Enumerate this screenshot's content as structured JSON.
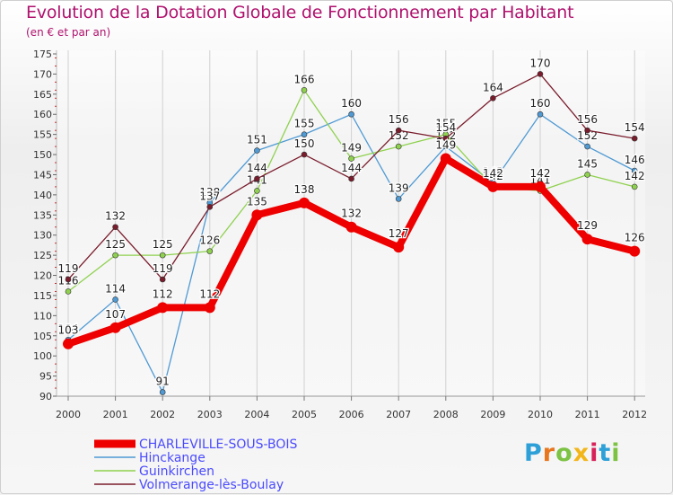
{
  "colors": {
    "title": "#b0126e",
    "legend_text": "#4a4aff",
    "axis_text": "#333333",
    "grid": "#d0d0d0"
  },
  "logo": {
    "text": "Proxiti",
    "colors": [
      "#2ea0d8",
      "#e8761e",
      "#7cc243",
      "#f3b61a",
      "#d8205a",
      "#2ea0d8",
      "#7cc243"
    ]
  },
  "chart_data": {
    "type": "line",
    "title": "Evolution de la Dotation Globale de Fonctionnement par Habitant",
    "subtitle": "(en € et par an)",
    "xlabel": "",
    "ylabel": "",
    "categories": [
      "2000",
      "2001",
      "2002",
      "2003",
      "2004",
      "2005",
      "2006",
      "2007",
      "2008",
      "2009",
      "2010",
      "2011",
      "2012"
    ],
    "ylim": [
      90,
      175
    ],
    "yticks": [
      90,
      95,
      100,
      105,
      110,
      115,
      120,
      125,
      130,
      135,
      140,
      145,
      150,
      155,
      160,
      165,
      170,
      175
    ],
    "grid": true,
    "legend_position": "bottom-left",
    "series": [
      {
        "name": "Hinckange",
        "color": "#4f9ad4",
        "thick": false,
        "values": [
          104,
          114,
          91,
          138,
          151,
          155,
          160,
          139,
          152,
          143,
          160,
          152,
          146
        ]
      },
      {
        "name": "Guinkirchen",
        "color": "#8fd14f",
        "thick": false,
        "values": [
          116,
          125,
          125,
          126,
          141,
          166,
          149,
          152,
          155,
          142,
          141,
          145,
          142
        ]
      },
      {
        "name": "Volmerange-lès-Boulay",
        "color": "#7a1c2c",
        "thick": false,
        "values": [
          119,
          132,
          119,
          137,
          144,
          150,
          144,
          156,
          154,
          164,
          170,
          156,
          154
        ]
      },
      {
        "name": "CHARLEVILLE-SOUS-BOIS",
        "color": "#ee0000",
        "thick": true,
        "values": [
          103,
          107,
          112,
          112,
          135,
          138,
          132,
          127,
          149,
          142,
          142,
          129,
          126
        ]
      }
    ],
    "legend_order": [
      "CHARLEVILLE-SOUS-BOIS",
      "Hinckange",
      "Guinkirchen",
      "Volmerange-lès-Boulay"
    ]
  }
}
